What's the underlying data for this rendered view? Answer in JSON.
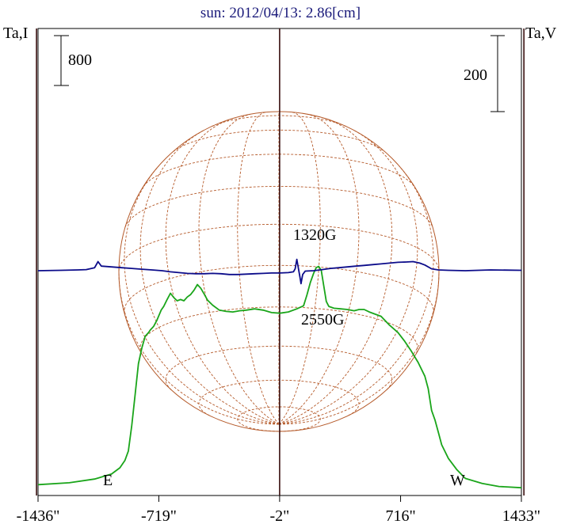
{
  "chart_data": {
    "type": "line",
    "title": "sun: 2012/04/13: 2.86[cm]",
    "ylabel_left": "Ta,I",
    "ylabel_right": "Ta,V",
    "xlim": [
      -1436,
      1433
    ],
    "x_ticks": [
      "-1436\"",
      "-719\"",
      "-2\"",
      "716\"",
      "1433\""
    ],
    "x_tick_values": [
      -1436,
      -719,
      -2,
      716,
      1433
    ],
    "scale_bar_left": "800",
    "scale_bar_right": "200",
    "limb_labels": {
      "east": "E",
      "west": "W"
    },
    "limb_positions": [
      -1445,
      1448
    ],
    "center_line": -2,
    "annotations": [
      {
        "text": "1320G",
        "x": 350,
        "side": "positive"
      },
      {
        "text": "2550G",
        "x": 430,
        "side": "negative"
      }
    ],
    "colors": {
      "intensity": "#1aa51a",
      "polarization": "#0c0c8a",
      "disk": "#b55a2a",
      "limb_lines": "#3a1010",
      "title": "#1a1a7a"
    },
    "series": [
      {
        "name": "Ta,I",
        "axis": "left",
        "points": [
          [
            -1436,
            60
          ],
          [
            -1250,
            90
          ],
          [
            -1100,
            150
          ],
          [
            -1000,
            230
          ],
          [
            -950,
            330
          ],
          [
            -920,
            450
          ],
          [
            -900,
            600
          ],
          [
            -880,
            1000
          ],
          [
            -860,
            1500
          ],
          [
            -850,
            1750
          ],
          [
            -840,
            2000
          ],
          [
            -820,
            2250
          ],
          [
            -800,
            2440
          ],
          [
            -780,
            2500
          ],
          [
            -770,
            2540
          ],
          [
            -750,
            2600
          ],
          [
            -730,
            2700
          ],
          [
            -705,
            2860
          ],
          [
            -690,
            2920
          ],
          [
            -670,
            3030
          ],
          [
            -650,
            3130
          ],
          [
            -630,
            3060
          ],
          [
            -610,
            3010
          ],
          [
            -590,
            3030
          ],
          [
            -570,
            3010
          ],
          [
            -550,
            3070
          ],
          [
            -530,
            3110
          ],
          [
            -510,
            3180
          ],
          [
            -490,
            3270
          ],
          [
            -470,
            3210
          ],
          [
            -450,
            3120
          ],
          [
            -430,
            3020
          ],
          [
            -400,
            2940
          ],
          [
            -360,
            2860
          ],
          [
            -320,
            2840
          ],
          [
            -280,
            2830
          ],
          [
            -240,
            2850
          ],
          [
            -200,
            2860
          ],
          [
            -150,
            2880
          ],
          [
            -100,
            2860
          ],
          [
            -50,
            2820
          ],
          [
            0,
            2810
          ],
          [
            50,
            2830
          ],
          [
            100,
            2880
          ],
          [
            140,
            2930
          ],
          [
            160,
            3100
          ],
          [
            180,
            3300
          ],
          [
            200,
            3450
          ],
          [
            215,
            3540
          ],
          [
            230,
            3560
          ],
          [
            245,
            3500
          ],
          [
            260,
            3250
          ],
          [
            275,
            3000
          ],
          [
            290,
            2920
          ],
          [
            320,
            2890
          ],
          [
            360,
            2880
          ],
          [
            400,
            2870
          ],
          [
            440,
            2850
          ],
          [
            470,
            2870
          ],
          [
            500,
            2870
          ],
          [
            530,
            2830
          ],
          [
            560,
            2800
          ],
          [
            600,
            2760
          ],
          [
            650,
            2620
          ],
          [
            700,
            2500
          ],
          [
            740,
            2360
          ],
          [
            780,
            2200
          ],
          [
            820,
            2020
          ],
          [
            860,
            1800
          ],
          [
            880,
            1600
          ],
          [
            900,
            1250
          ],
          [
            920,
            1100
          ],
          [
            940,
            900
          ],
          [
            960,
            700
          ],
          [
            1000,
            480
          ],
          [
            1050,
            300
          ],
          [
            1100,
            160
          ],
          [
            1200,
            80
          ],
          [
            1300,
            30
          ],
          [
            1433,
            10
          ]
        ]
      },
      {
        "name": "Ta,V",
        "axis": "right",
        "points": [
          [
            -1436,
            0
          ],
          [
            -1300,
            1
          ],
          [
            -1200,
            2
          ],
          [
            -1150,
            3
          ],
          [
            -1100,
            8
          ],
          [
            -1080,
            24
          ],
          [
            -1060,
            12
          ],
          [
            -1000,
            10
          ],
          [
            -940,
            8
          ],
          [
            -880,
            6
          ],
          [
            -820,
            4
          ],
          [
            -760,
            2
          ],
          [
            -700,
            0
          ],
          [
            -650,
            -3
          ],
          [
            -600,
            -5
          ],
          [
            -550,
            -7
          ],
          [
            -500,
            -8
          ],
          [
            -450,
            -8
          ],
          [
            -400,
            -7
          ],
          [
            -350,
            -8
          ],
          [
            -300,
            -10
          ],
          [
            -250,
            -10
          ],
          [
            -200,
            -9
          ],
          [
            -150,
            -8
          ],
          [
            -100,
            -7
          ],
          [
            -50,
            -6
          ],
          [
            0,
            -6
          ],
          [
            50,
            -5
          ],
          [
            80,
            -3
          ],
          [
            90,
            5
          ],
          [
            100,
            30
          ],
          [
            110,
            5
          ],
          [
            118,
            -15
          ],
          [
            125,
            -34
          ],
          [
            135,
            -10
          ],
          [
            150,
            -1
          ],
          [
            200,
            0
          ],
          [
            250,
            3
          ],
          [
            300,
            6
          ],
          [
            350,
            8
          ],
          [
            400,
            10
          ],
          [
            450,
            12
          ],
          [
            500,
            14
          ],
          [
            550,
            16
          ],
          [
            600,
            18
          ],
          [
            650,
            20
          ],
          [
            700,
            22
          ],
          [
            750,
            23
          ],
          [
            790,
            24
          ],
          [
            830,
            20
          ],
          [
            860,
            15
          ],
          [
            900,
            5
          ],
          [
            940,
            2
          ],
          [
            1000,
            1
          ],
          [
            1100,
            0
          ],
          [
            1250,
            2
          ],
          [
            1433,
            1
          ]
        ]
      }
    ]
  }
}
